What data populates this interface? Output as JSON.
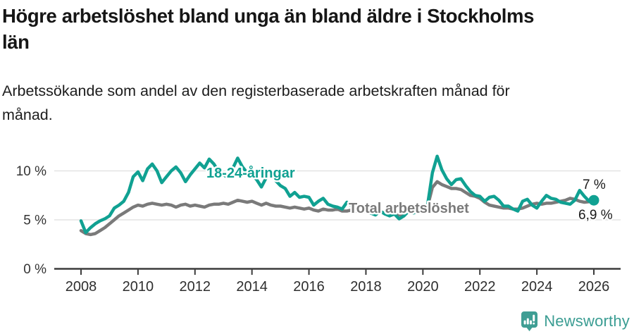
{
  "header": {
    "title_lines": [
      "Högre arbetslöshet bland unga än bland äldre i Stockholms",
      "län"
    ],
    "subtitle_lines": [
      "Arbetssökande som andel av den registerbaserade arbetskraften månad för",
      "månad."
    ]
  },
  "chart_data": {
    "type": "line",
    "title": "Högre arbetslöshet bland unga än bland äldre i Stockholms län",
    "subtitle": "Arbetssökande som andel av den registerbaserade arbetskraften månad för månad.",
    "x_axis": {
      "range": [
        2007.1,
        2026.9
      ],
      "ticks": [
        {
          "year": 2008,
          "label": "2008"
        },
        {
          "year": 2010,
          "label": "2010"
        },
        {
          "year": 2012,
          "label": "2012"
        },
        {
          "year": 2014,
          "label": "2014"
        },
        {
          "year": 2016,
          "label": "2016"
        },
        {
          "year": 2018,
          "label": "2018"
        },
        {
          "year": 2020,
          "label": "2020"
        },
        {
          "year": 2022,
          "label": "2022"
        },
        {
          "year": 2024,
          "label": "2024"
        },
        {
          "year": 2026,
          "label": "2026"
        }
      ]
    },
    "y_axis": {
      "unit": "%",
      "range": [
        0,
        12.5
      ],
      "grid": true,
      "ticks": [
        {
          "value": 0,
          "label": "0 %"
        },
        {
          "value": 5,
          "label": "5 %"
        },
        {
          "value": 10,
          "label": "10 %"
        }
      ]
    },
    "legend_position": "inline-labels",
    "series": [
      {
        "id": "total",
        "name": "Total arbetslöshet",
        "color": "#7a7a7a",
        "start_year": 2008,
        "points_per_year": 6,
        "end_value": 6.9,
        "end_value_label": "6,9 %",
        "end_dot": false,
        "values": [
          3.9,
          3.6,
          3.5,
          3.6,
          3.9,
          4.2,
          4.6,
          5.0,
          5.4,
          5.7,
          6.0,
          6.3,
          6.5,
          6.4,
          6.6,
          6.7,
          6.6,
          6.5,
          6.6,
          6.5,
          6.3,
          6.5,
          6.6,
          6.4,
          6.5,
          6.4,
          6.3,
          6.5,
          6.6,
          6.6,
          6.7,
          6.6,
          6.8,
          7.0,
          6.9,
          6.8,
          6.9,
          6.7,
          6.5,
          6.7,
          6.5,
          6.4,
          6.4,
          6.3,
          6.2,
          6.3,
          6.2,
          6.1,
          6.2,
          6.0,
          5.9,
          6.1,
          6.0,
          6.0,
          6.1,
          5.9,
          5.9,
          6.0,
          5.9,
          5.8,
          5.9,
          5.7,
          5.6,
          5.8,
          5.7,
          5.6,
          5.7,
          5.5,
          5.6,
          5.8,
          5.9,
          6.0,
          6.1,
          6.4,
          8.3,
          8.9,
          8.6,
          8.4,
          8.2,
          8.2,
          8.1,
          7.8,
          7.5,
          7.4,
          7.2,
          6.8,
          6.5,
          6.4,
          6.3,
          6.2,
          6.2,
          6.1,
          6.1,
          6.2,
          6.4,
          6.6,
          6.7,
          6.6,
          6.7,
          6.7,
          6.8,
          6.9,
          7.0,
          7.2,
          7.1,
          6.9,
          6.8,
          6.85,
          6.9
        ]
      },
      {
        "id": "youth",
        "name": "18-24-åringar",
        "color": "#10a192",
        "start_year": 2008,
        "points_per_year": 6,
        "end_value": 7.0,
        "end_value_label": "7 %",
        "end_dot": true,
        "values": [
          4.9,
          3.7,
          4.2,
          4.6,
          4.9,
          5.1,
          5.4,
          6.2,
          6.5,
          6.9,
          7.8,
          9.4,
          9.9,
          9.0,
          10.2,
          10.7,
          10.0,
          8.8,
          9.4,
          10.0,
          10.4,
          9.8,
          8.9,
          9.6,
          10.2,
          10.8,
          10.3,
          11.2,
          10.7,
          9.9,
          9.6,
          9.3,
          10.3,
          11.3,
          10.4,
          9.8,
          9.6,
          9.1,
          8.35,
          9.3,
          9.8,
          9.0,
          8.5,
          8.2,
          7.4,
          7.8,
          7.3,
          7.4,
          7.3,
          6.5,
          6.9,
          7.2,
          6.6,
          6.4,
          6.3,
          6.1,
          6.8,
          6.4,
          6.1,
          5.9,
          6.0,
          5.7,
          5.5,
          5.9,
          5.6,
          5.4,
          5.6,
          5.1,
          5.4,
          5.9,
          5.7,
          5.9,
          6.0,
          6.6,
          9.8,
          11.5,
          10.1,
          9.2,
          8.6,
          9.1,
          9.2,
          8.5,
          7.9,
          7.5,
          7.4,
          6.9,
          7.3,
          7.4,
          7.0,
          6.4,
          6.4,
          6.1,
          5.9,
          6.9,
          7.1,
          6.5,
          6.2,
          6.9,
          7.5,
          7.2,
          7.1,
          6.8,
          6.7,
          6.6,
          7.0,
          8.0,
          7.4,
          6.9,
          7.0
        ]
      }
    ],
    "annotations": {
      "youth_label": "18-24-åringar",
      "total_label": "Total arbetslöshet",
      "youth_end": "7 %",
      "total_end": "6,9 %"
    }
  },
  "footer": {
    "brand": "Newsworthy",
    "logo_icon": "newsworthy-speech-bubble-bar-chart-icon",
    "brand_color": "#3b9d93"
  },
  "colors": {
    "youth_line": "#10a192",
    "total_line": "#7a7a7a",
    "gridline": "#e3e3e3",
    "axis": "#3c3c3c",
    "text": "#1a1a1a"
  }
}
